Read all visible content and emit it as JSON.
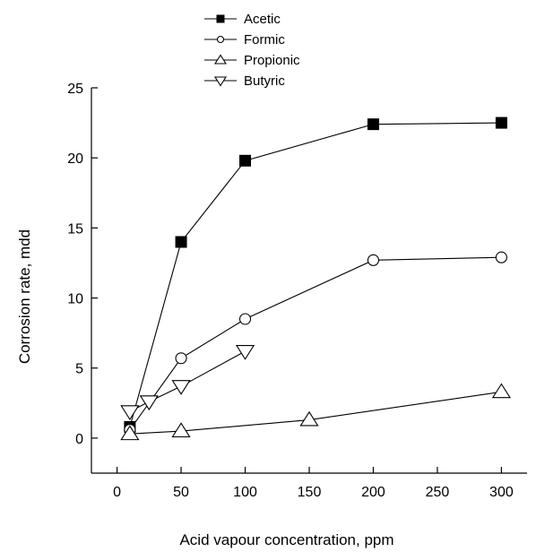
{
  "chart_data": {
    "type": "line",
    "xlabel": "Acid vapour concentration, ppm",
    "ylabel": "Corrosion rate, mdd",
    "xlim": [
      -20,
      320
    ],
    "ylim": [
      -2.5,
      25
    ],
    "x_ticks": [
      0,
      50,
      100,
      150,
      200,
      250,
      300
    ],
    "y_ticks": [
      0,
      5,
      10,
      15,
      20,
      25
    ],
    "grid": false,
    "legend_position": "top-center",
    "series": [
      {
        "name": "Acetic",
        "marker": "filled-square",
        "points": [
          [
            10,
            0.8
          ],
          [
            50,
            14.0
          ],
          [
            100,
            19.8
          ],
          [
            200,
            22.4
          ],
          [
            300,
            22.5
          ]
        ]
      },
      {
        "name": "Formic",
        "marker": "open-circle",
        "points": [
          [
            10,
            0.6
          ],
          [
            50,
            5.7
          ],
          [
            100,
            8.5
          ],
          [
            200,
            12.7
          ],
          [
            300,
            12.9
          ]
        ]
      },
      {
        "name": "Propionic",
        "marker": "open-triangle-up",
        "points": [
          [
            10,
            0.3
          ],
          [
            50,
            0.5
          ],
          [
            150,
            1.3
          ],
          [
            300,
            3.3
          ]
        ]
      },
      {
        "name": "Butyric",
        "marker": "open-triangle-down",
        "points": [
          [
            10,
            1.9
          ],
          [
            25,
            2.6
          ],
          [
            50,
            3.7
          ],
          [
            100,
            6.2
          ]
        ]
      }
    ]
  }
}
